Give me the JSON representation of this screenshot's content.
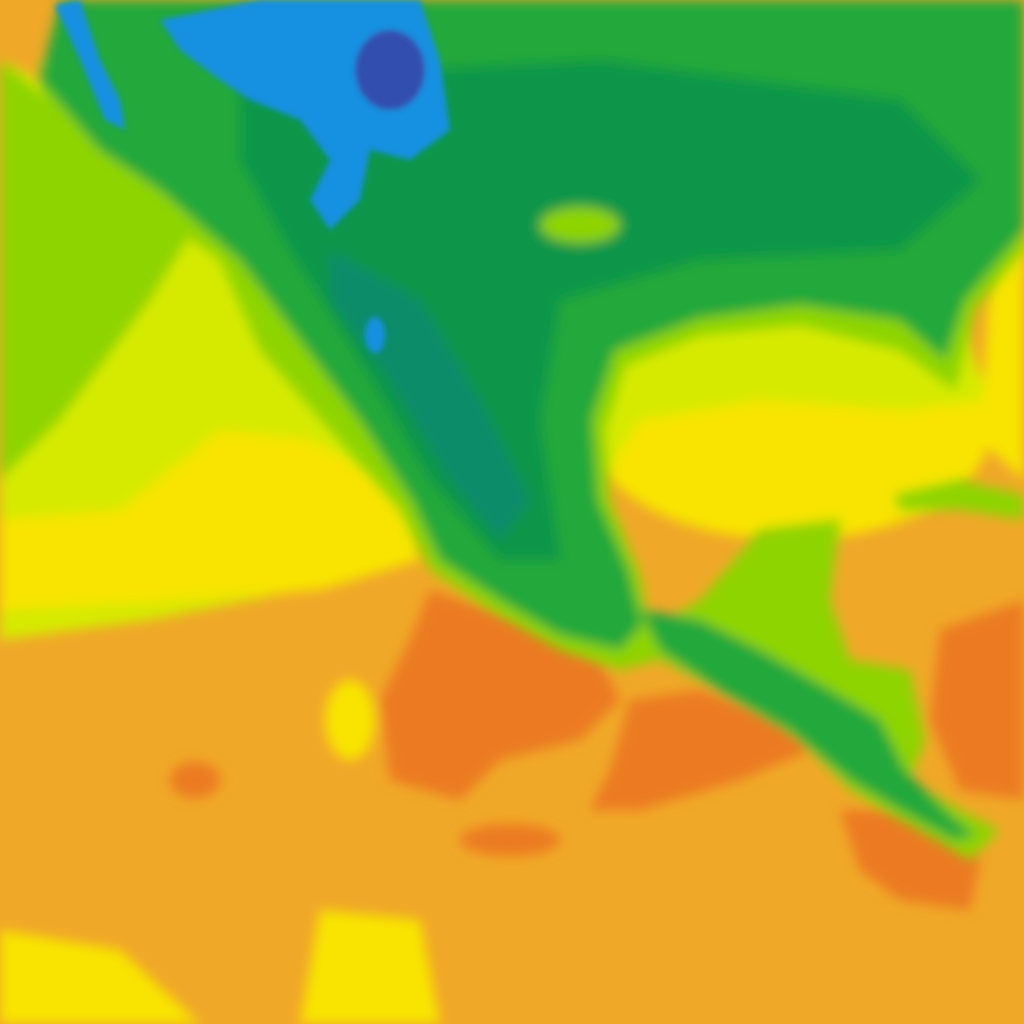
{
  "map": {
    "type": "temperature-heatmap-tile",
    "colors": {
      "ocean_warm": "#f0a828",
      "ocean_hot": "#ec7a24",
      "yellow": "#f8e400",
      "yellow_green": "#d6ea00",
      "lime": "#8ed400",
      "green": "#20a83a",
      "dark_green": "#0e9648",
      "teal": "#0a8c6a",
      "blue": "#1890e0",
      "dark_blue": "#3050b0"
    }
  }
}
